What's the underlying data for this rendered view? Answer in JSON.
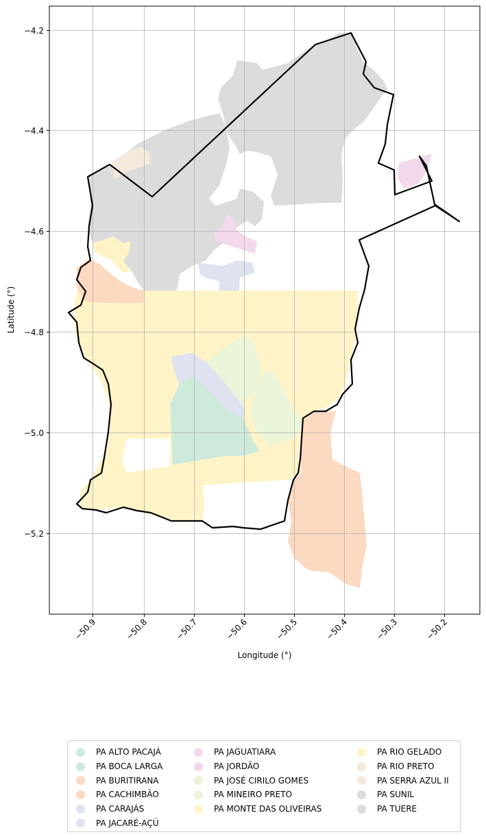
{
  "map": {
    "xlabel": "Longitude (°)",
    "ylabel": "Latitude (°)",
    "x_ticks": [
      "−50.9",
      "−50.8",
      "−50.7",
      "−50.6",
      "−50.5",
      "−50.4",
      "−50.3",
      "−50.2"
    ],
    "y_ticks": [
      "−4.2",
      "−4.4",
      "−4.6",
      "−4.8",
      "−5.0",
      "−5.2"
    ],
    "xlim": [
      -50.985,
      -50.125
    ],
    "ylim": [
      -5.365,
      -4.155
    ],
    "grid": true,
    "boundary_color": "#000000"
  },
  "legend": {
    "placement": "below map",
    "items": [
      {
        "label": "PA ALTO PACAJÁ",
        "color": "#cdeadb"
      },
      {
        "label": "PA BOCA LARGA",
        "color": "#cdeadb"
      },
      {
        "label": "PA BURITIRANA",
        "color": "#fcd9c1"
      },
      {
        "label": "PA CACHIMBÃO",
        "color": "#fcd9c1"
      },
      {
        "label": "PA CARAJÁS",
        "color": "#dfe2f0"
      },
      {
        "label": "PA JACARÉ-AÇÚ",
        "color": "#dfe2f0"
      },
      {
        "label": "PA JAGUATIARA",
        "color": "#f3d9ec"
      },
      {
        "label": "PA JORDÃO",
        "color": "#f3d9ec"
      },
      {
        "label": "PA JOSÉ CIRILO GOMES",
        "color": "#eaf5d9"
      },
      {
        "label": "PA MINEIRO PRETO",
        "color": "#eaf5d9"
      },
      {
        "label": "PA MONTE DAS OLIVEIRAS",
        "color": "#fff4c7"
      },
      {
        "label": "PA RIO GELADO",
        "color": "#fff4c7"
      },
      {
        "label": "PA RIO PRETO",
        "color": "#f5e9dc"
      },
      {
        "label": "PA SERRA AZUL II",
        "color": "#f5e9dc"
      },
      {
        "label": "PA SUNIL",
        "color": "#dcdcdc"
      },
      {
        "label": "PA TUERE",
        "color": "#dcdcdc"
      }
    ]
  }
}
